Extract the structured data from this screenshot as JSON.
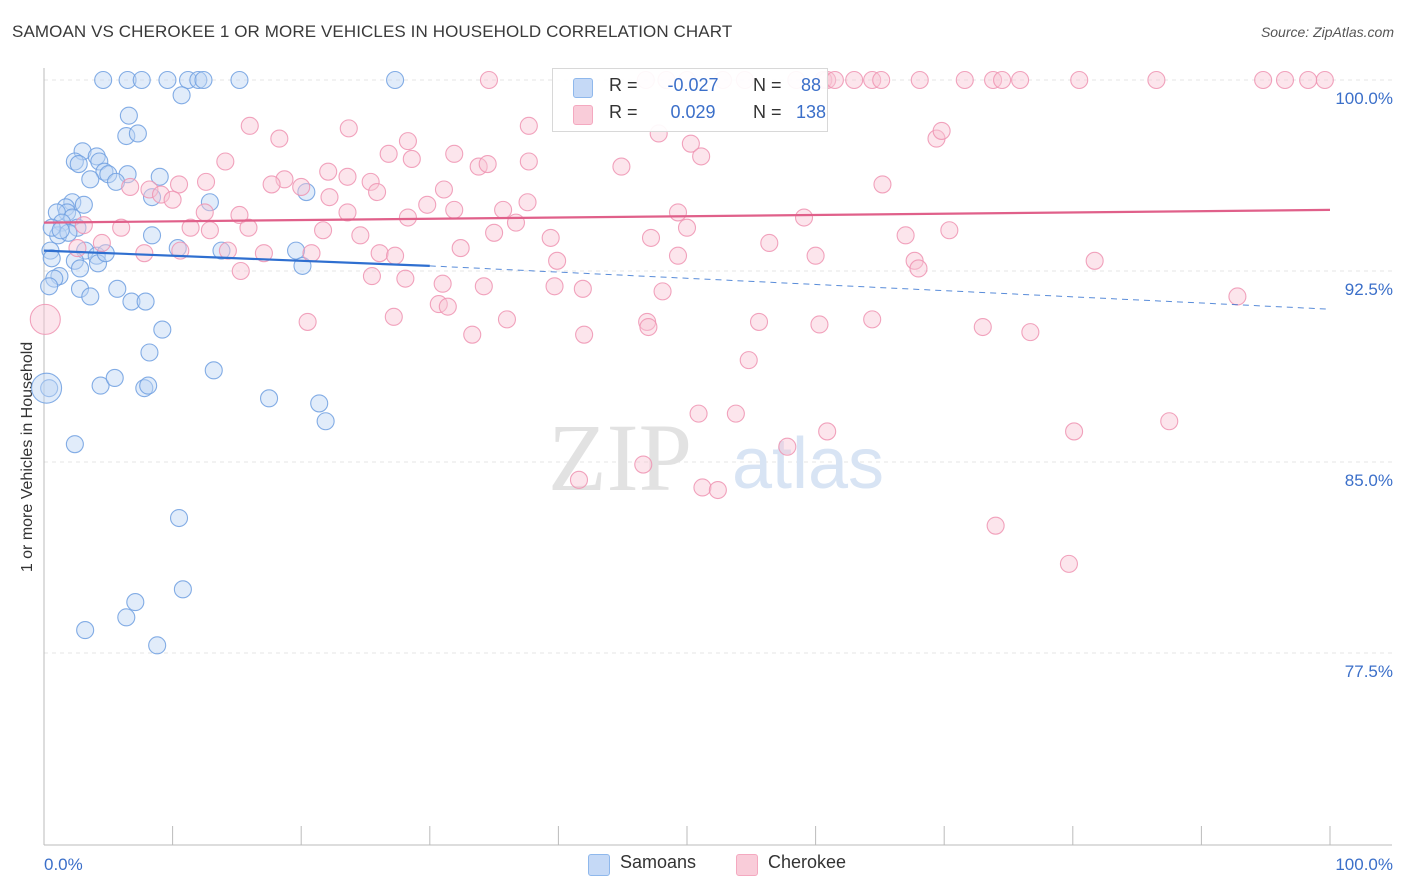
{
  "header": {
    "title": "SAMOAN VS CHEROKEE 1 OR MORE VEHICLES IN HOUSEHOLD CORRELATION CHART",
    "source": "Source: ZipAtlas.com"
  },
  "watermark": {
    "zip": "ZIP",
    "atlas": "atlas"
  },
  "legend": {
    "r_label": "R =",
    "n_label": "N =",
    "rows": [
      {
        "series": "Samoans",
        "r": "-0.027",
        "n": "88",
        "color": "#8fb8ec"
      },
      {
        "series": "Cherokee",
        "r": "0.029",
        "n": "138",
        "color": "#f4a9c0"
      }
    ]
  },
  "bottom_legend": [
    "Samoans",
    "Cherokee"
  ],
  "chart_data": {
    "type": "scatter",
    "title": "SAMOAN VS CHEROKEE 1 OR MORE VEHICLES IN HOUSEHOLD CORRELATION CHART",
    "xlabel": "",
    "ylabel": "1 or more Vehicles in Household",
    "xlim": [
      0,
      100
    ],
    "ylim": [
      70,
      101.3
    ],
    "x_tick_labels": [
      "0.0%",
      "100.0%"
    ],
    "y_tick_labels": [
      "100.0%",
      "92.5%",
      "85.0%",
      "77.5%"
    ],
    "y_ticks": [
      100,
      92.5,
      85,
      77.5
    ],
    "grid": true,
    "legend_position": "top-center",
    "colors": {
      "Samoans": "#8fb8ec",
      "Cherokee": "#f4a9c0",
      "Samoans_line": "#2f6fd0",
      "Cherokee_line": "#e0608a"
    },
    "series": [
      {
        "name": "Samoans",
        "trend": {
          "x": [
            0,
            30
          ],
          "y": [
            93.3,
            92.7
          ],
          "dashed_extension_to": [
            100,
            91.0
          ]
        },
        "points": [
          [
            4.6,
            100
          ],
          [
            6.5,
            100
          ],
          [
            7.6,
            100
          ],
          [
            9.6,
            100
          ],
          [
            11.2,
            100
          ],
          [
            12.0,
            100
          ],
          [
            12.4,
            100
          ],
          [
            15.2,
            100
          ],
          [
            27.3,
            100
          ],
          [
            10.7,
            99.4
          ],
          [
            6.6,
            98.6
          ],
          [
            6.4,
            97.8
          ],
          [
            7.3,
            97.9
          ],
          [
            3.0,
            97.2
          ],
          [
            4.1,
            97.0
          ],
          [
            2.4,
            96.8
          ],
          [
            4.3,
            96.8
          ],
          [
            6.5,
            96.3
          ],
          [
            2.7,
            96.7
          ],
          [
            4.7,
            96.4
          ],
          [
            5.0,
            96.3
          ],
          [
            9.0,
            96.2
          ],
          [
            3.6,
            96.1
          ],
          [
            5.6,
            96.0
          ],
          [
            2.2,
            95.2
          ],
          [
            1.7,
            95.0
          ],
          [
            1.8,
            94.8
          ],
          [
            1.0,
            94.8
          ],
          [
            3.1,
            95.1
          ],
          [
            8.4,
            95.4
          ],
          [
            12.9,
            95.2
          ],
          [
            20.4,
            95.6
          ],
          [
            2.2,
            94.6
          ],
          [
            1.4,
            94.4
          ],
          [
            2.6,
            94.2
          ],
          [
            1.1,
            93.9
          ],
          [
            0.6,
            94.2
          ],
          [
            1.9,
            94.0
          ],
          [
            1.3,
            94.1
          ],
          [
            0.5,
            93.3
          ],
          [
            3.2,
            93.3
          ],
          [
            8.4,
            93.9
          ],
          [
            10.4,
            93.4
          ],
          [
            13.8,
            93.3
          ],
          [
            19.6,
            93.3
          ],
          [
            0.6,
            93.0
          ],
          [
            4.1,
            93.1
          ],
          [
            4.2,
            92.8
          ],
          [
            4.8,
            93.2
          ],
          [
            2.4,
            92.9
          ],
          [
            2.8,
            92.6
          ],
          [
            1.2,
            92.3
          ],
          [
            0.8,
            92.2
          ],
          [
            20.1,
            92.7
          ],
          [
            0.4,
            91.9
          ],
          [
            2.8,
            91.8
          ],
          [
            3.6,
            91.5
          ],
          [
            5.7,
            91.8
          ],
          [
            6.8,
            91.3
          ],
          [
            7.9,
            91.3
          ],
          [
            9.2,
            90.2
          ],
          [
            8.2,
            89.3
          ],
          [
            0.4,
            87.9
          ],
          [
            13.2,
            88.6
          ],
          [
            4.4,
            88.0
          ],
          [
            5.5,
            88.3
          ],
          [
            7.8,
            87.9
          ],
          [
            8.1,
            88.0
          ],
          [
            17.5,
            87.5
          ],
          [
            21.4,
            87.3
          ],
          [
            21.9,
            86.6
          ],
          [
            2.4,
            85.7
          ],
          [
            10.5,
            82.8
          ],
          [
            10.8,
            80.0
          ],
          [
            7.1,
            79.5
          ],
          [
            6.4,
            78.9
          ],
          [
            3.2,
            78.4
          ],
          [
            8.8,
            77.8
          ]
        ],
        "large_points": [
          [
            0.2,
            87.9
          ]
        ]
      },
      {
        "name": "Cherokee",
        "trend": {
          "x": [
            0,
            100
          ],
          "y": [
            94.4,
            94.9
          ]
        },
        "points": [
          [
            34.6,
            100
          ],
          [
            46.8,
            100
          ],
          [
            48.4,
            100
          ],
          [
            50.0,
            100
          ],
          [
            52.8,
            100
          ],
          [
            54.5,
            100
          ],
          [
            58.5,
            100
          ],
          [
            60.6,
            100
          ],
          [
            60.9,
            100
          ],
          [
            61.5,
            100
          ],
          [
            63.0,
            100
          ],
          [
            64.4,
            100
          ],
          [
            65.1,
            100
          ],
          [
            68.1,
            100
          ],
          [
            71.6,
            100
          ],
          [
            73.8,
            100
          ],
          [
            74.5,
            100
          ],
          [
            75.9,
            100
          ],
          [
            80.5,
            100
          ],
          [
            86.5,
            100
          ],
          [
            94.8,
            100
          ],
          [
            96.5,
            100
          ],
          [
            98.3,
            100
          ],
          [
            99.6,
            100
          ],
          [
            16.0,
            98.2
          ],
          [
            18.3,
            97.7
          ],
          [
            23.7,
            98.1
          ],
          [
            28.3,
            97.6
          ],
          [
            31.9,
            97.1
          ],
          [
            37.7,
            98.2
          ],
          [
            47.8,
            97.9
          ],
          [
            50.3,
            97.5
          ],
          [
            69.4,
            97.7
          ],
          [
            69.8,
            98.0
          ],
          [
            26.8,
            97.1
          ],
          [
            28.6,
            96.9
          ],
          [
            33.8,
            96.6
          ],
          [
            34.5,
            96.7
          ],
          [
            37.7,
            96.8
          ],
          [
            44.9,
            96.6
          ],
          [
            51.1,
            97.0
          ],
          [
            14.1,
            96.8
          ],
          [
            18.7,
            96.1
          ],
          [
            22.1,
            96.4
          ],
          [
            23.6,
            96.2
          ],
          [
            25.4,
            96.0
          ],
          [
            10.5,
            95.9
          ],
          [
            12.6,
            96.0
          ],
          [
            17.7,
            95.9
          ],
          [
            20.0,
            95.8
          ],
          [
            22.2,
            95.4
          ],
          [
            25.9,
            95.6
          ],
          [
            29.8,
            95.1
          ],
          [
            31.1,
            95.7
          ],
          [
            37.6,
            95.2
          ],
          [
            65.2,
            95.9
          ],
          [
            6.7,
            95.8
          ],
          [
            8.2,
            95.7
          ],
          [
            9.1,
            95.5
          ],
          [
            10.0,
            95.3
          ],
          [
            12.5,
            94.8
          ],
          [
            15.2,
            94.7
          ],
          [
            23.6,
            94.8
          ],
          [
            28.3,
            94.6
          ],
          [
            31.9,
            94.9
          ],
          [
            35.7,
            94.9
          ],
          [
            36.7,
            94.4
          ],
          [
            49.3,
            94.8
          ],
          [
            50.0,
            94.2
          ],
          [
            59.1,
            94.6
          ],
          [
            3.1,
            94.3
          ],
          [
            6.0,
            94.2
          ],
          [
            11.4,
            94.2
          ],
          [
            12.9,
            94.1
          ],
          [
            15.9,
            94.2
          ],
          [
            21.7,
            94.1
          ],
          [
            24.6,
            93.9
          ],
          [
            35.0,
            94.0
          ],
          [
            39.4,
            93.8
          ],
          [
            47.2,
            93.8
          ],
          [
            56.4,
            93.6
          ],
          [
            67.0,
            93.9
          ],
          [
            70.4,
            94.1
          ],
          [
            2.6,
            93.4
          ],
          [
            4.5,
            93.6
          ],
          [
            7.8,
            93.2
          ],
          [
            10.6,
            93.3
          ],
          [
            14.3,
            93.3
          ],
          [
            17.1,
            93.2
          ],
          [
            20.8,
            93.2
          ],
          [
            26.1,
            93.2
          ],
          [
            27.3,
            93.1
          ],
          [
            32.4,
            93.4
          ],
          [
            39.9,
            92.9
          ],
          [
            49.3,
            93.1
          ],
          [
            60.0,
            93.1
          ],
          [
            67.7,
            92.9
          ],
          [
            81.7,
            92.9
          ],
          [
            15.3,
            92.5
          ],
          [
            25.5,
            92.3
          ],
          [
            28.1,
            92.2
          ],
          [
            31.0,
            92.0
          ],
          [
            34.2,
            91.9
          ],
          [
            39.7,
            91.9
          ],
          [
            41.9,
            91.8
          ],
          [
            48.1,
            91.7
          ],
          [
            68.0,
            92.6
          ],
          [
            30.7,
            91.2
          ],
          [
            31.4,
            91.1
          ],
          [
            27.2,
            90.7
          ],
          [
            36.0,
            90.6
          ],
          [
            46.9,
            90.5
          ],
          [
            47.0,
            90.3
          ],
          [
            55.6,
            90.5
          ],
          [
            60.3,
            90.4
          ],
          [
            64.4,
            90.6
          ],
          [
            73.0,
            90.3
          ],
          [
            76.7,
            90.1
          ],
          [
            92.8,
            91.5
          ],
          [
            20.5,
            90.5
          ],
          [
            33.3,
            90.0
          ],
          [
            42.0,
            90.0
          ],
          [
            54.8,
            89.0
          ],
          [
            50.9,
            86.9
          ],
          [
            53.8,
            86.9
          ],
          [
            57.8,
            85.6
          ],
          [
            60.9,
            86.2
          ],
          [
            80.1,
            86.2
          ],
          [
            87.5,
            86.6
          ],
          [
            41.6,
            84.3
          ],
          [
            46.6,
            84.9
          ],
          [
            51.2,
            84.0
          ],
          [
            52.4,
            83.9
          ],
          [
            74.0,
            82.5
          ],
          [
            79.7,
            81.0
          ]
        ],
        "large_points": [
          [
            0.1,
            90.6
          ]
        ]
      }
    ]
  }
}
